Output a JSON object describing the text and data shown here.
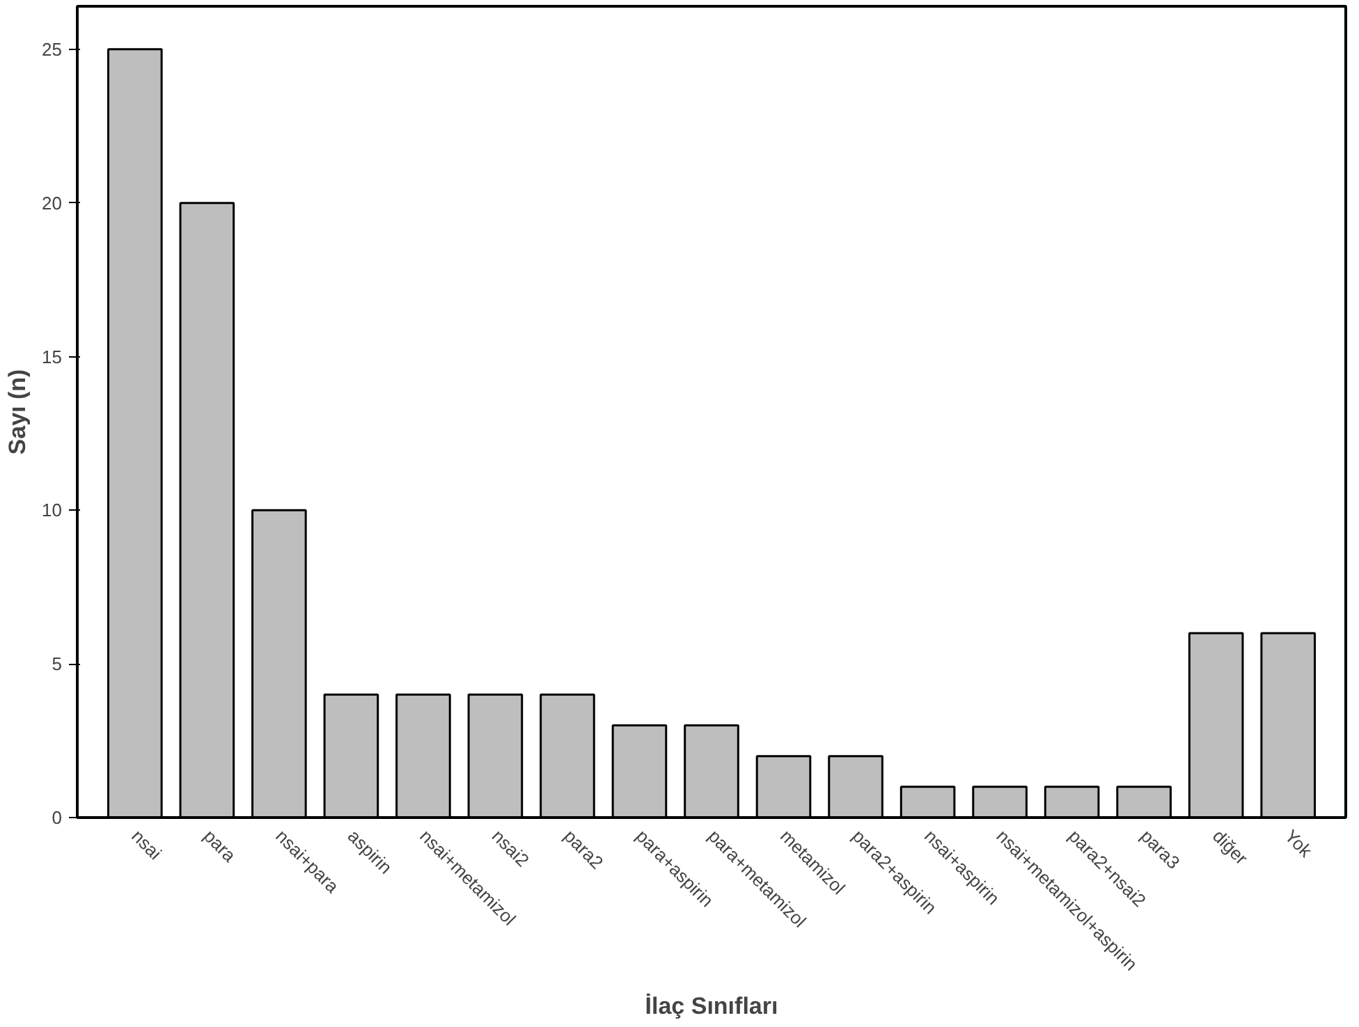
{
  "chart_data": {
    "type": "bar",
    "xlabel": "İlaç Sınıfları",
    "ylabel": "Sayı (n)",
    "categories": [
      "nsai",
      "para",
      "nsai+para",
      "aspirin",
      "nsai+metamizol",
      "nsai2",
      "para2",
      "para+aspirin",
      "para+metamizol",
      "metamizol",
      "para2+aspirin",
      "nsai+aspirin",
      "nsai+metamizol+aspirin",
      "para2+nsai2",
      "para3",
      "diğer",
      "Yok"
    ],
    "values": [
      25,
      20,
      10,
      4,
      4,
      4,
      4,
      3,
      3,
      2,
      2,
      1,
      1,
      1,
      1,
      6,
      6
    ],
    "color": "#bebebe",
    "ylim": [
      0,
      26.4
    ],
    "yticks": [
      0,
      5,
      10,
      15,
      20,
      25
    ],
    "grid": false
  }
}
